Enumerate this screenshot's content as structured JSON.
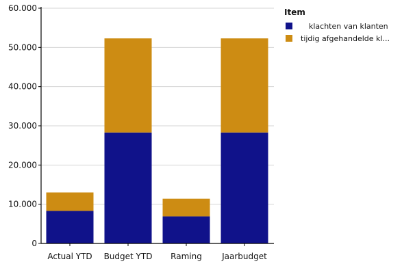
{
  "chart_data": {
    "type": "bar",
    "stacked": true,
    "categories": [
      "Actual YTD",
      "Budget YTD",
      "Raming",
      "Jaarbudget"
    ],
    "series": [
      {
        "name": "klachten van klanten",
        "color": "#10128a",
        "values": [
          8300,
          28300,
          6900,
          28300
        ]
      },
      {
        "name": "tijdig afgehandelde kl...",
        "color": "#cd8c13",
        "values": [
          4700,
          24000,
          4500,
          24000
        ]
      }
    ],
    "ylim": [
      0,
      60000
    ],
    "yticks": [
      0,
      10000,
      20000,
      30000,
      40000,
      50000,
      60000
    ],
    "ytick_labels": [
      "0",
      "10.000",
      "20.000",
      "30.000",
      "40.000",
      "50.000",
      "60.000"
    ],
    "grid": true,
    "legend": {
      "title": "Item",
      "placement": "top-right"
    }
  }
}
